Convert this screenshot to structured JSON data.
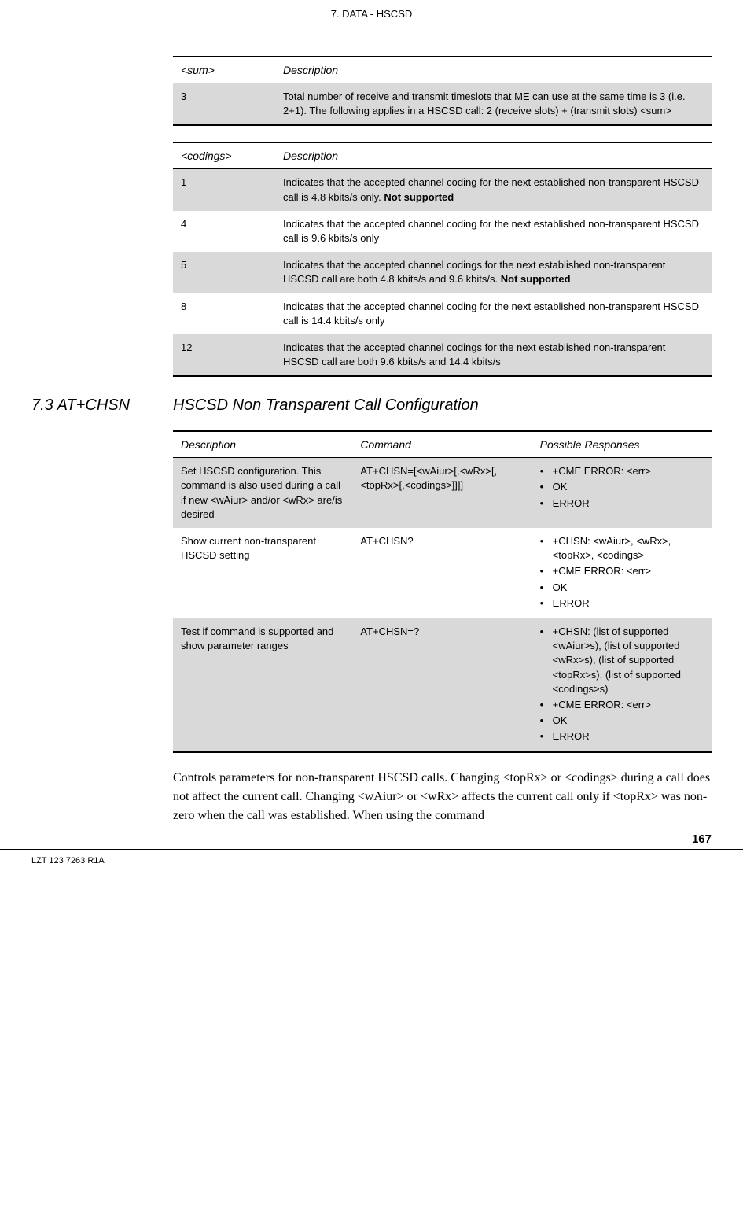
{
  "header": {
    "title": "7. DATA - HSCSD"
  },
  "table_sum": {
    "headers": {
      "col1": "<sum>",
      "col2": "Description"
    },
    "rows": [
      {
        "shaded": true,
        "value": "3",
        "desc": "Total number of receive and transmit timeslots that ME can use at the same time is 3 (i.e. 2+1). The following applies in a HSCSD call: 2 (receive slots) + (transmit slots) <sum>"
      }
    ]
  },
  "table_codings": {
    "headers": {
      "col1": "<codings>",
      "col2": "Description"
    },
    "rows": [
      {
        "shaded": true,
        "value": "1",
        "desc": "Indicates that the accepted channel coding for the next established non-transparent HSCSD call is 4.8 kbits/s only. ",
        "bold_suffix": "Not supported"
      },
      {
        "shaded": false,
        "value": "4",
        "desc": "Indicates that the accepted channel coding for the next established non-transparent HSCSD call is 9.6 kbits/s only"
      },
      {
        "shaded": true,
        "value": "5",
        "desc": "Indicates that the accepted channel codings for the next established non-transparent HSCSD call are both 4.8 kbits/s and 9.6 kbits/s. ",
        "bold_suffix": "Not supported"
      },
      {
        "shaded": false,
        "value": "8",
        "desc": "Indicates that the accepted channel coding for the next established non-transparent HSCSD call is 14.4 kbits/s only"
      },
      {
        "shaded": true,
        "value": "12",
        "desc": "Indicates that the accepted channel codings for the next established non-transparent HSCSD call are both 9.6 kbits/s and 14.4 kbits/s"
      }
    ]
  },
  "section": {
    "number": "7.3 AT+CHSN",
    "title": "HSCSD Non Transparent Call Configuration"
  },
  "table_command": {
    "headers": {
      "col1": "Description",
      "col2": "Command",
      "col3": "Possible Responses"
    },
    "rows": [
      {
        "shaded": true,
        "desc": "Set HSCSD configuration. This command is also used during a call if new <wAiur> and/or <wRx> are/is desired",
        "command": "AT+CHSN=[<wAiur>[,<wRx>[,<topRx>[,<codings>]]]]",
        "responses": [
          "+CME ERROR: <err>",
          "OK",
          "ERROR"
        ]
      },
      {
        "shaded": false,
        "desc": "Show current non-transparent HSCSD setting",
        "command": "AT+CHSN?",
        "responses": [
          "+CHSN: <wAiur>, <wRx>, <topRx>, <codings>",
          "+CME ERROR: <err>",
          "OK",
          "ERROR"
        ]
      },
      {
        "shaded": true,
        "desc": "Test if command is supported and show parameter ranges",
        "command": "AT+CHSN=?",
        "responses": [
          "+CHSN: (list of supported <wAiur>s), (list of supported <wRx>s), (list of supported <topRx>s), (list of supported <codings>s)",
          "+CME ERROR: <err>",
          "OK",
          "ERROR"
        ]
      }
    ]
  },
  "body_paragraph": "Controls parameters for non-transparent HSCSD calls. Changing <topRx> or <codings> during a call does not affect the current call. Changing <wAiur> or <wRx> affects the current call only if <topRx> was non-zero when the call was established. When using the command",
  "footer": {
    "left": "LZT 123 7263 R1A",
    "page": "167"
  },
  "colors": {
    "shaded_row": "#d9d9d9",
    "text": "#000000",
    "background": "#ffffff"
  }
}
